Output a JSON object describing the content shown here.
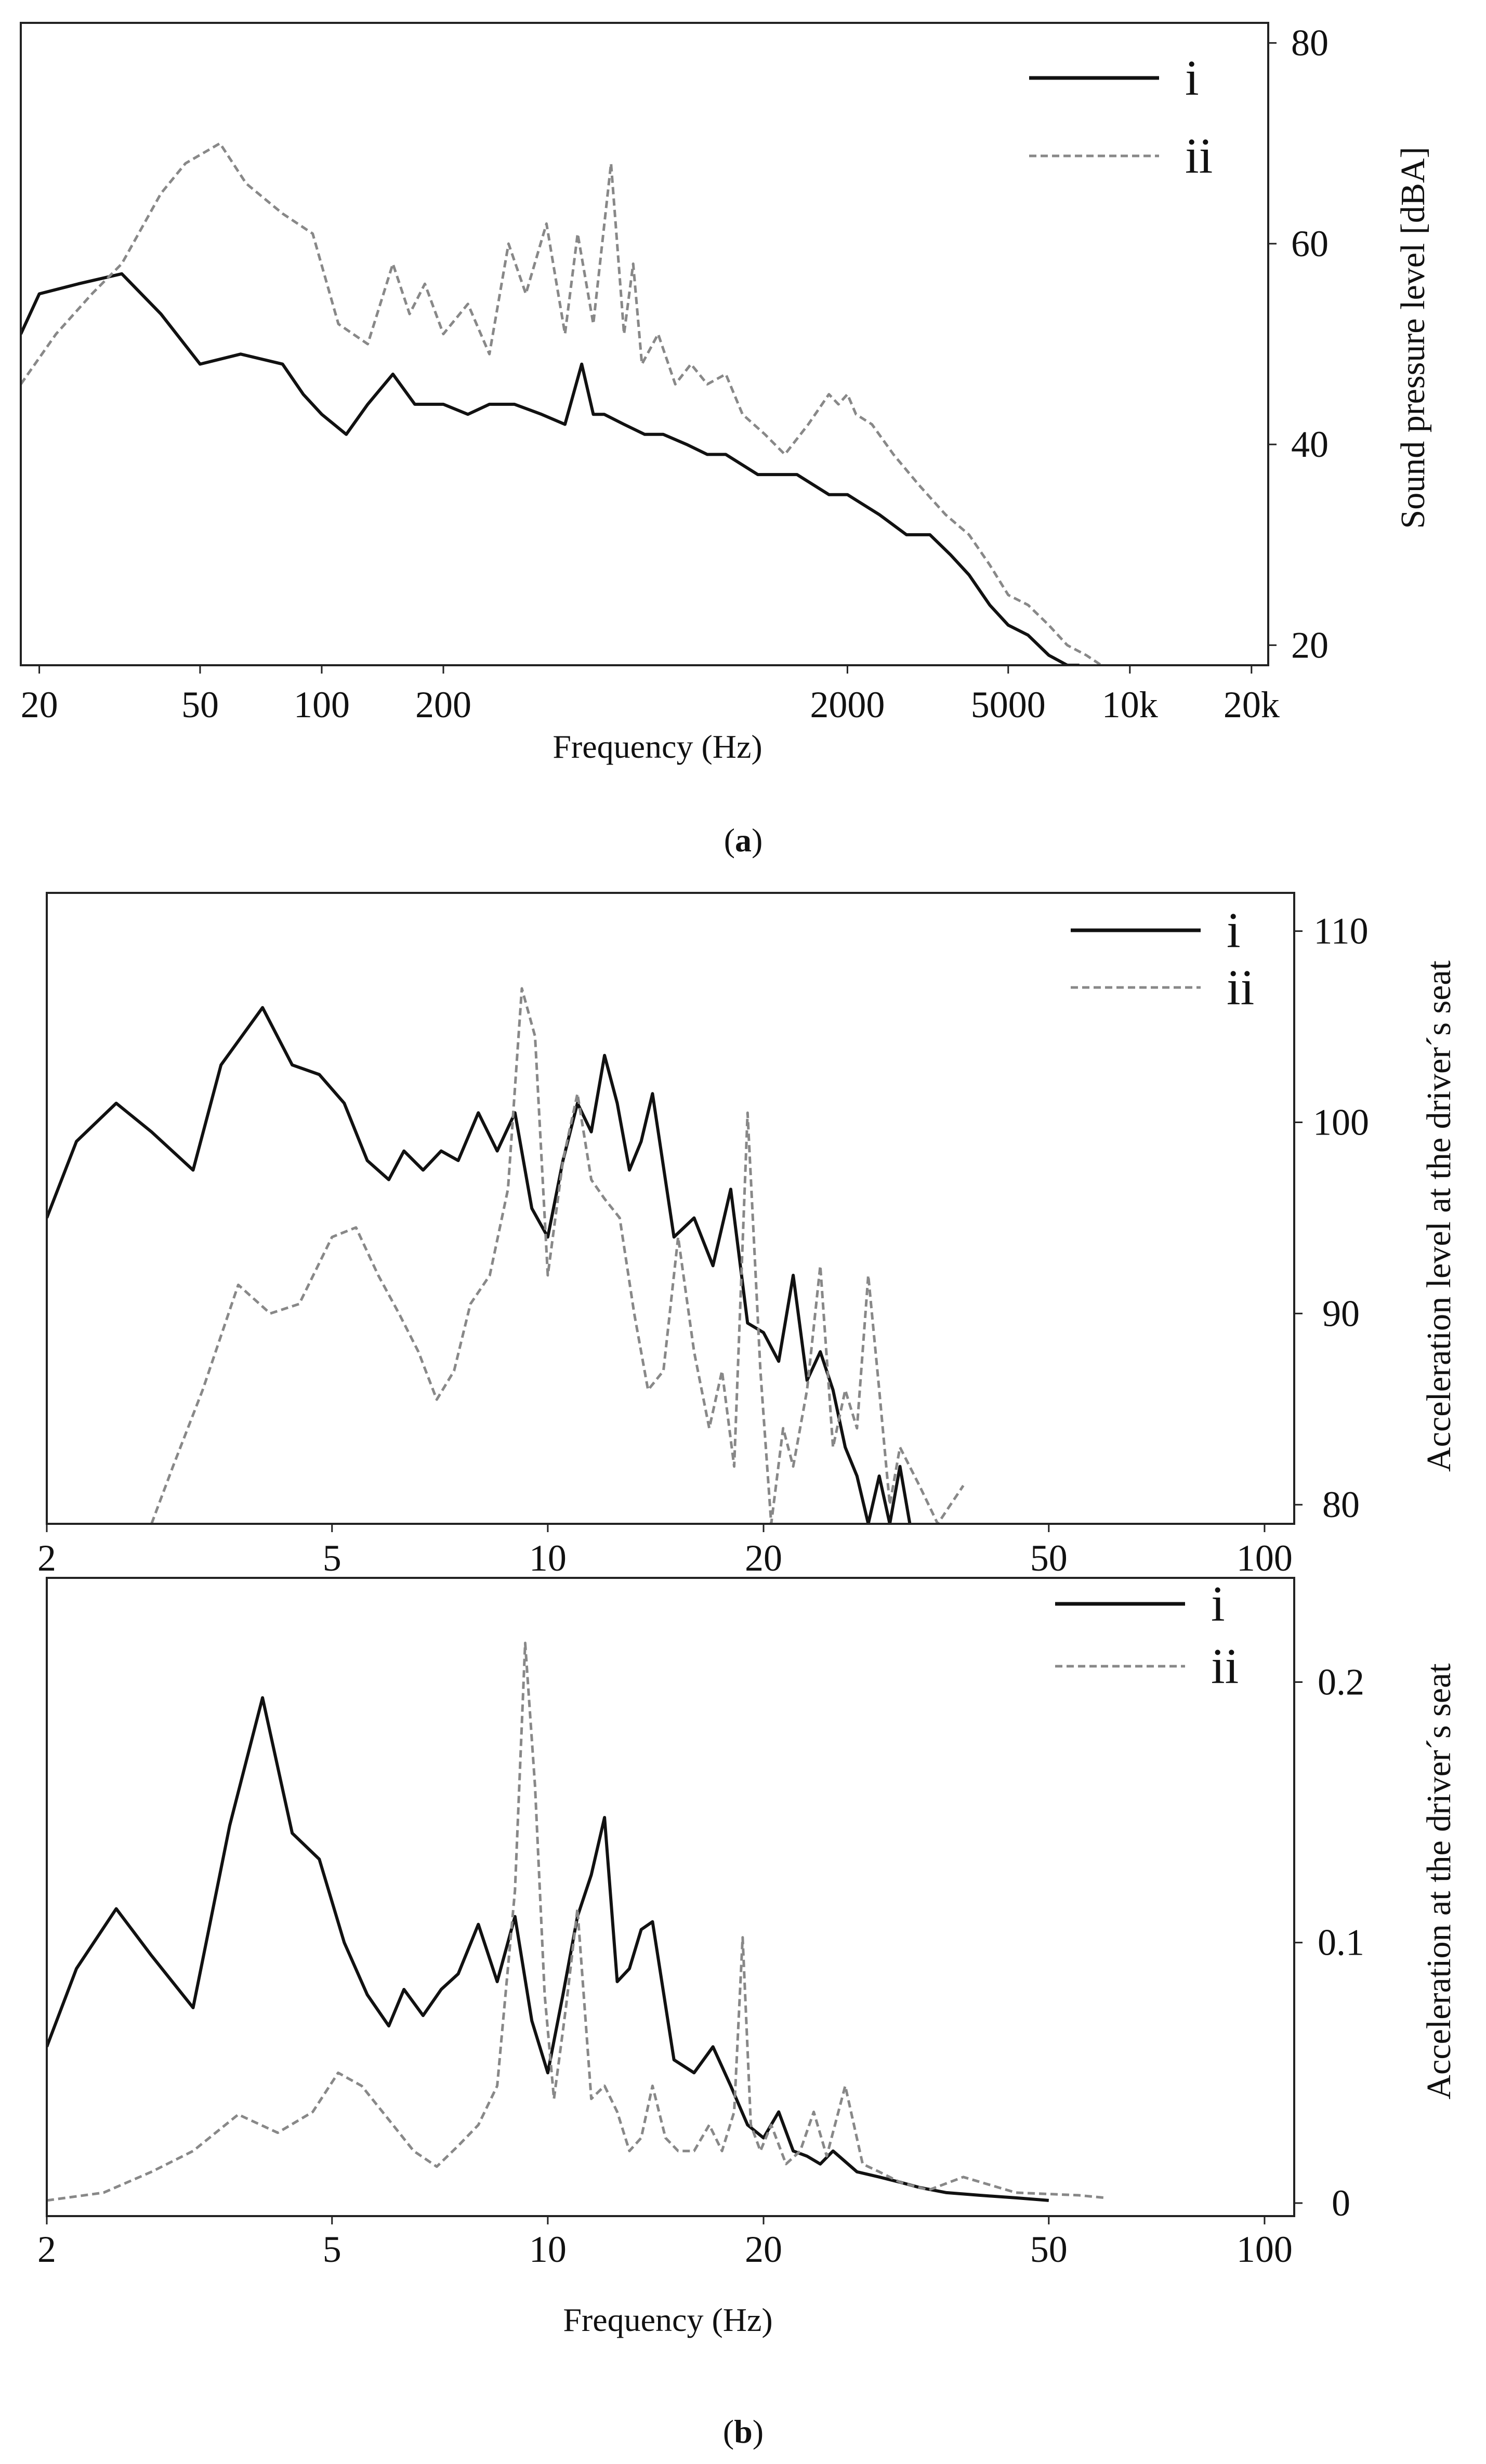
{
  "figure": {
    "panel_labels": [
      "(a)",
      "(b)"
    ],
    "panel_letters": [
      "a",
      "b"
    ]
  },
  "chart_data": [
    {
      "id": "a",
      "type": "line",
      "title": "",
      "xlabel": "Frequency (Hz)",
      "ylabel": "Sound pressure level [dBA]",
      "xscale": "log",
      "xlim": [
        18,
        22000
      ],
      "ylim": [
        18,
        82
      ],
      "xticks": [
        20,
        50,
        100,
        200,
        2000,
        5000,
        10000,
        20000
      ],
      "xtick_labels": [
        "20",
        "50",
        "100",
        "200",
        "2000",
        "5000",
        "10k",
        "20k"
      ],
      "yticks": [
        20,
        40,
        60,
        80
      ],
      "ytick_labels": [
        "20",
        "40",
        "60",
        "80"
      ],
      "legend_position": "top-right",
      "series": [
        {
          "name": "i",
          "style": "solid",
          "color": "#111111",
          "x": [
            18,
            20,
            25,
            32,
            40,
            50,
            63,
            80,
            90,
            100,
            115,
            130,
            150,
            170,
            200,
            230,
            260,
            300,
            350,
            400,
            440,
            470,
            500,
            560,
            630,
            700,
            800,
            900,
            1000,
            1200,
            1500,
            1800,
            2000,
            2400,
            2800,
            3200,
            3600,
            4000,
            4500,
            5000,
            5600,
            6300,
            7000,
            7500
          ],
          "y": [
            51,
            55,
            56,
            57,
            53,
            48,
            49,
            48,
            45,
            43,
            41,
            44,
            47,
            44,
            44,
            43,
            44,
            44,
            43,
            42,
            48,
            43,
            43,
            42,
            41,
            41,
            40,
            39,
            39,
            37,
            37,
            35,
            35,
            33,
            31,
            31,
            29,
            27,
            24,
            22,
            21,
            19,
            18,
            18
          ]
        },
        {
          "name": "ii",
          "style": "dashed",
          "color": "#888888",
          "x": [
            18,
            22,
            27,
            32,
            40,
            46,
            56,
            65,
            80,
            95,
            110,
            130,
            150,
            165,
            180,
            200,
            230,
            260,
            290,
            320,
            360,
            400,
            430,
            470,
            520,
            560,
            590,
            620,
            680,
            750,
            820,
            900,
            1000,
            1100,
            1250,
            1400,
            1600,
            1800,
            1900,
            2000,
            2100,
            2300,
            2600,
            3000,
            3500,
            4000,
            4500,
            5000,
            5600,
            6300,
            7000,
            7800,
            8500
          ],
          "y": [
            46,
            51,
            55,
            58,
            65,
            68,
            70,
            66,
            63,
            61,
            52,
            50,
            58,
            53,
            56,
            51,
            54,
            49,
            60,
            55,
            62,
            51,
            61,
            52,
            68,
            51,
            58,
            48,
            51,
            46,
            48,
            46,
            47,
            43,
            41,
            39,
            42,
            45,
            44,
            45,
            43,
            42,
            39,
            36,
            33,
            31,
            28,
            25,
            24,
            22,
            20,
            19,
            18
          ]
        }
      ]
    },
    {
      "id": "b-top",
      "type": "line",
      "title": "",
      "xlabel": "",
      "ylabel": "Acceleration level at the driver´s seat",
      "xscale": "log",
      "xlim": [
        2,
        110
      ],
      "ylim": [
        79,
        112
      ],
      "xticks": [
        2,
        5,
        10,
        20,
        50,
        100
      ],
      "xtick_labels": [
        "2",
        "5",
        "10",
        "20",
        "50",
        "100"
      ],
      "yticks": [
        80,
        90,
        100,
        110
      ],
      "ytick_labels": [
        "80",
        "90",
        "100",
        "110"
      ],
      "legend_position": "top-right",
      "series": [
        {
          "name": "i",
          "style": "solid",
          "color": "#111111",
          "x": [
            2,
            2.2,
            2.5,
            2.8,
            3.2,
            3.5,
            4,
            4.4,
            4.8,
            5.2,
            5.6,
            6,
            6.3,
            6.7,
            7.1,
            7.5,
            8,
            8.5,
            9,
            9.5,
            10,
            10.5,
            11,
            11.5,
            12,
            12.5,
            13,
            13.5,
            14,
            15,
            16,
            17,
            18,
            19,
            20,
            21,
            22,
            23,
            24,
            25,
            26,
            27,
            28,
            29,
            30,
            31,
            32
          ],
          "y": [
            95,
            99,
            101,
            99.5,
            97.5,
            103,
            106,
            103,
            102.5,
            101,
            98,
            97,
            98.5,
            97.5,
            98.5,
            98,
            100.5,
            98.5,
            100.5,
            95.5,
            94,
            98,
            101,
            99.5,
            103.5,
            101,
            97.5,
            99,
            101.5,
            94,
            95,
            92.5,
            96.5,
            89.5,
            89,
            87.5,
            92,
            86.5,
            88,
            86,
            83,
            81.5,
            79,
            81.5,
            79,
            82,
            79
          ]
        },
        {
          "name": "ii",
          "style": "dashed",
          "color": "#888888",
          "x": [
            2.8,
            3.0,
            3.3,
            3.7,
            4.1,
            4.5,
            5,
            5.4,
            5.8,
            6.2,
            6.6,
            7,
            7.4,
            7.8,
            8.3,
            8.8,
            9.2,
            9.6,
            10.0,
            10.5,
            11,
            11.5,
            12,
            12.6,
            13.2,
            13.8,
            14.5,
            15.2,
            16,
            16.8,
            17.5,
            18.2,
            19,
            19.8,
            20.5,
            21.3,
            22,
            23,
            24,
            25,
            26,
            27,
            28,
            29,
            30,
            31,
            33,
            35,
            38
          ],
          "y": [
            79,
            82,
            86,
            91.5,
            90,
            90.5,
            94,
            94.5,
            92,
            90,
            88,
            85.5,
            87,
            90.5,
            92,
            96.5,
            107,
            104.5,
            92,
            98,
            101.5,
            97,
            96,
            95,
            90,
            86,
            87,
            94,
            88,
            84,
            87,
            82,
            100.5,
            87,
            79,
            84,
            82,
            86,
            92.5,
            83,
            86,
            84,
            92,
            86,
            80,
            83,
            81,
            79,
            81
          ]
        }
      ]
    },
    {
      "id": "b-bottom",
      "type": "line",
      "title": "",
      "xlabel": "Frequency (Hz)",
      "ylabel": "Acceleration at the driver´s seat",
      "xscale": "log",
      "xlim": [
        2,
        110
      ],
      "ylim": [
        -0.005,
        0.24
      ],
      "xticks": [
        2,
        5,
        10,
        20,
        50,
        100
      ],
      "xtick_labels": [
        "2",
        "5",
        "10",
        "20",
        "50",
        "100"
      ],
      "yticks": [
        0,
        0.1,
        0.2
      ],
      "ytick_labels": [
        "0",
        "0.1",
        "0.2"
      ],
      "legend_position": "top-right",
      "series": [
        {
          "name": "i",
          "style": "solid",
          "color": "#111111",
          "x": [
            2,
            2.2,
            2.5,
            2.8,
            3.2,
            3.6,
            4,
            4.4,
            4.8,
            5.2,
            5.6,
            6,
            6.3,
            6.7,
            7.1,
            7.5,
            8,
            8.5,
            9,
            9.5,
            10,
            10.5,
            11,
            11.5,
            12,
            12.5,
            13,
            13.5,
            14,
            15,
            16,
            17,
            18,
            19,
            20,
            21,
            22,
            23,
            24,
            25,
            27,
            29,
            31,
            33,
            36,
            40,
            45,
            50
          ],
          "y": [
            0.06,
            0.09,
            0.113,
            0.095,
            0.075,
            0.145,
            0.194,
            0.142,
            0.132,
            0.1,
            0.08,
            0.068,
            0.082,
            0.072,
            0.082,
            0.088,
            0.107,
            0.085,
            0.11,
            0.07,
            0.05,
            0.08,
            0.11,
            0.126,
            0.148,
            0.085,
            0.09,
            0.105,
            0.108,
            0.055,
            0.05,
            0.06,
            0.045,
            0.03,
            0.025,
            0.035,
            0.02,
            0.018,
            0.015,
            0.02,
            0.012,
            0.01,
            0.008,
            0.006,
            0.004,
            0.003,
            0.002,
            0.001
          ]
        },
        {
          "name": "ii",
          "style": "dashed",
          "color": "#888888",
          "x": [
            2,
            2.4,
            2.8,
            3.2,
            3.7,
            4.2,
            4.7,
            5.1,
            5.5,
            6,
            6.5,
            7,
            7.5,
            8,
            8.5,
            9,
            9.3,
            9.6,
            9.9,
            10.2,
            10.6,
            11,
            11.5,
            12,
            12.5,
            13,
            13.5,
            14,
            14.6,
            15.2,
            16,
            16.8,
            17.5,
            18.2,
            18.7,
            19.2,
            19.8,
            20.5,
            21.5,
            22.5,
            23.5,
            24.5,
            26,
            27.5,
            29,
            31,
            34,
            38,
            45,
            55,
            60
          ],
          "y": [
            0.001,
            0.004,
            0.012,
            0.02,
            0.034,
            0.027,
            0.035,
            0.05,
            0.045,
            0.032,
            0.02,
            0.014,
            0.022,
            0.03,
            0.045,
            0.12,
            0.215,
            0.16,
            0.08,
            0.04,
            0.075,
            0.113,
            0.04,
            0.045,
            0.035,
            0.02,
            0.025,
            0.045,
            0.025,
            0.02,
            0.02,
            0.03,
            0.02,
            0.035,
            0.102,
            0.03,
            0.02,
            0.03,
            0.015,
            0.02,
            0.035,
            0.018,
            0.045,
            0.015,
            0.012,
            0.008,
            0.005,
            0.01,
            0.004,
            0.003,
            0.002
          ]
        }
      ]
    }
  ]
}
